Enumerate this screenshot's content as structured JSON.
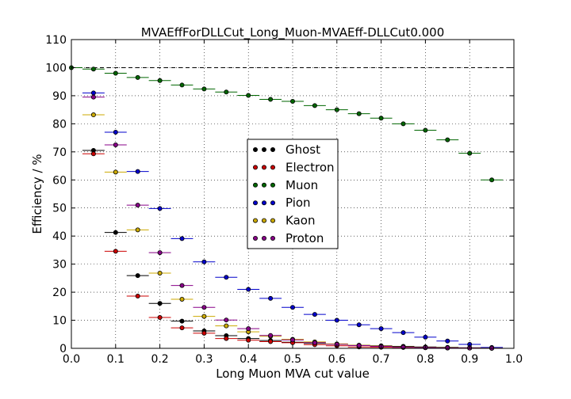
{
  "chart_data": {
    "type": "scatter",
    "title": "MVAEffForDLLCut_Long_Muon-MVAEff-DLLCut0.000",
    "xlabel": "Long Muon MVA cut value",
    "ylabel": "Efficiency / %",
    "xlim": [
      0.0,
      1.0
    ],
    "ylim": [
      0,
      110
    ],
    "xticks": [
      "0.0",
      "0.1",
      "0.2",
      "0.3",
      "0.4",
      "0.5",
      "0.6",
      "0.7",
      "0.8",
      "0.9",
      "1.0"
    ],
    "yticks": [
      "0",
      "10",
      "20",
      "30",
      "40",
      "50",
      "60",
      "70",
      "80",
      "90",
      "100",
      "110"
    ],
    "grid": true,
    "reference_line": 100,
    "legend_position": "center",
    "bin_width": 0.05,
    "series": [
      {
        "name": "Ghost",
        "color": "#000000",
        "x": [
          0.05,
          0.1,
          0.15,
          0.2,
          0.25,
          0.3,
          0.35,
          0.4,
          0.45,
          0.5,
          0.55,
          0.6,
          0.65,
          0.7,
          0.75,
          0.8,
          0.85,
          0.9,
          0.95
        ],
        "y": [
          70.5,
          41.3,
          25.9,
          16.0,
          9.7,
          6.2,
          4.5,
          3.5,
          2.8,
          2.2,
          1.8,
          1.4,
          1.1,
          0.9,
          0.7,
          0.5,
          0.35,
          0.2,
          0.1
        ]
      },
      {
        "name": "Electron",
        "color": "#cc0000",
        "x": [
          0.05,
          0.1,
          0.15,
          0.2,
          0.25,
          0.3,
          0.35,
          0.4,
          0.45,
          0.5,
          0.55,
          0.6,
          0.65,
          0.7,
          0.75,
          0.8,
          0.85,
          0.9,
          0.95
        ],
        "y": [
          69.3,
          34.6,
          18.6,
          11.0,
          7.3,
          5.4,
          3.5,
          2.9,
          2.4,
          2.0,
          1.3,
          0.9,
          0.5,
          0.4,
          0.3,
          0.2,
          0.1,
          0.1,
          0.05
        ]
      },
      {
        "name": "Muon",
        "color": "#006600",
        "x": [
          0.0,
          0.05,
          0.1,
          0.15,
          0.2,
          0.25,
          0.3,
          0.35,
          0.4,
          0.45,
          0.5,
          0.55,
          0.6,
          0.65,
          0.7,
          0.75,
          0.8,
          0.85,
          0.9,
          0.95
        ],
        "y": [
          100.0,
          99.5,
          98.0,
          96.5,
          95.4,
          93.8,
          92.4,
          91.3,
          90.1,
          88.7,
          88.0,
          86.5,
          85.0,
          83.6,
          82.0,
          80.0,
          77.7,
          74.3,
          69.5,
          60.0
        ]
      },
      {
        "name": "Pion",
        "color": "#0000cc",
        "x": [
          0.05,
          0.1,
          0.15,
          0.2,
          0.25,
          0.3,
          0.35,
          0.4,
          0.45,
          0.5,
          0.55,
          0.6,
          0.65,
          0.7,
          0.75,
          0.8,
          0.85,
          0.9,
          0.95
        ],
        "y": [
          91.0,
          77.0,
          63.0,
          49.8,
          39.1,
          30.8,
          25.3,
          21.0,
          17.8,
          14.6,
          12.1,
          10.0,
          8.4,
          7.0,
          5.6,
          4.0,
          2.6,
          1.4,
          0.3
        ]
      },
      {
        "name": "Kaon",
        "color": "#ccaa00",
        "x": [
          0.05,
          0.1,
          0.15,
          0.2,
          0.25,
          0.3,
          0.35,
          0.4,
          0.45,
          0.5,
          0.55,
          0.6,
          0.65,
          0.7,
          0.75,
          0.8,
          0.85,
          0.9,
          0.95
        ],
        "y": [
          83.2,
          62.8,
          42.2,
          26.8,
          17.5,
          11.4,
          8.0,
          5.9,
          4.3,
          3.2,
          2.3,
          1.6,
          1.1,
          0.8,
          0.5,
          0.3,
          0.2,
          0.1,
          0.05
        ]
      },
      {
        "name": "Proton",
        "color": "#880088",
        "x": [
          0.05,
          0.1,
          0.15,
          0.2,
          0.25,
          0.3,
          0.35,
          0.4,
          0.45,
          0.5,
          0.55,
          0.6,
          0.65,
          0.7,
          0.75,
          0.8,
          0.85,
          0.9,
          0.95
        ],
        "y": [
          89.5,
          72.5,
          51.0,
          34.1,
          22.4,
          14.6,
          10.1,
          7.0,
          4.6,
          3.0,
          2.0,
          1.4,
          1.0,
          0.7,
          0.4,
          0.25,
          0.15,
          0.1,
          0.05
        ]
      }
    ]
  }
}
